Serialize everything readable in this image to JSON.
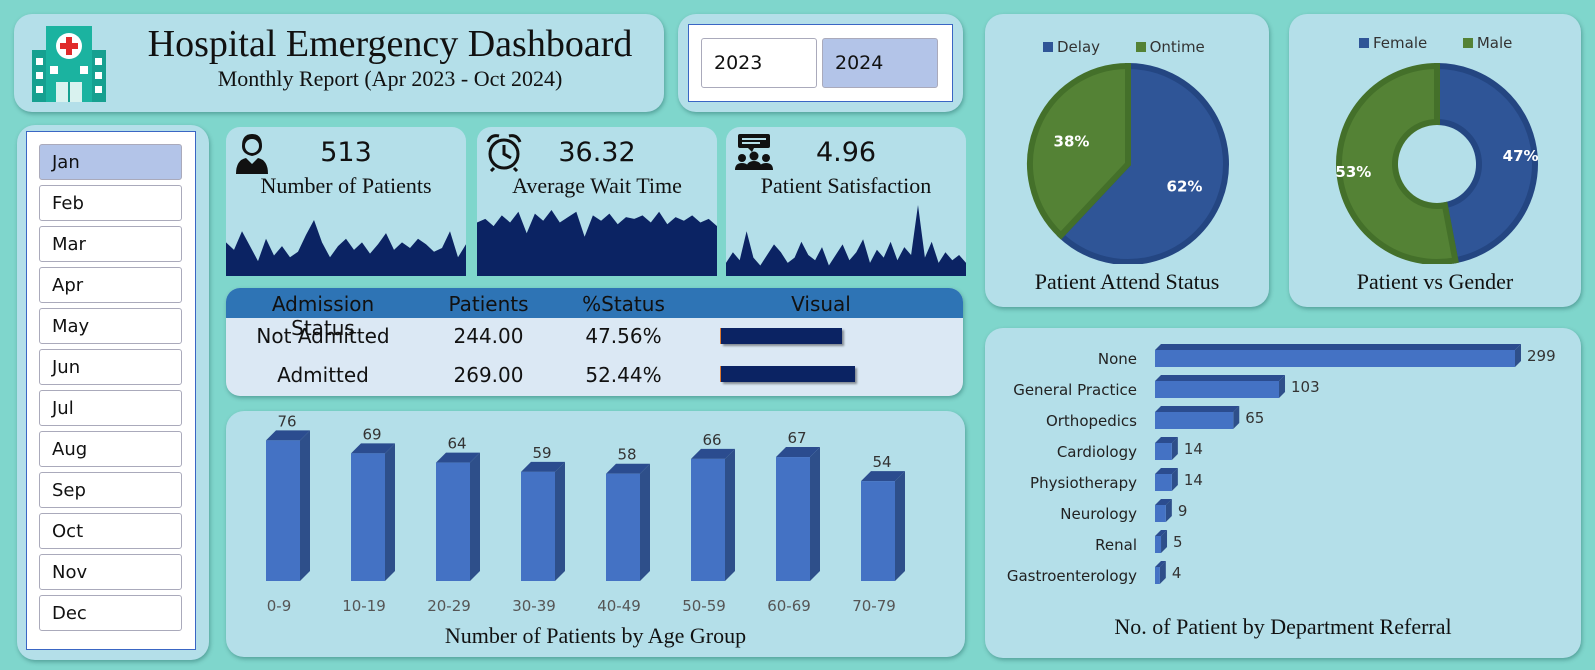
{
  "header": {
    "title": "Hospital Emergency Dashboard",
    "subtitle": "Monthly Report (Apr 2023 - Oct 2024)",
    "icon": "hospital-icon"
  },
  "years": {
    "options": [
      "2023",
      "2024"
    ],
    "selected": "2024"
  },
  "months": {
    "options": [
      "Jan",
      "Feb",
      "Mar",
      "Apr",
      "May",
      "Jun",
      "Jul",
      "Aug",
      "Sep",
      "Oct",
      "Nov",
      "Dec"
    ],
    "selected": "Jan"
  },
  "kpis": {
    "patients": {
      "value": "513",
      "label": "Number of Patients",
      "icon": "patient-icon"
    },
    "wait": {
      "value": "36.32",
      "label": "Average Wait Time",
      "icon": "alarm-clock-icon"
    },
    "satisfaction": {
      "value": "4.96",
      "label": "Patient Satisfaction",
      "icon": "group-feedback-icon"
    }
  },
  "admission": {
    "headers": [
      "Admission Status",
      "Patients",
      "%Status",
      "Visual"
    ],
    "rows": [
      {
        "status": "Not Admitted",
        "patients": "244.00",
        "pct": "47.56%",
        "pct_value": 47.56
      },
      {
        "status": "Admitted",
        "patients": "269.00",
        "pct": "52.44%",
        "pct_value": 52.44
      }
    ]
  },
  "colors": {
    "navy": "#0b2363",
    "blue": "#4472c4",
    "pie_blue": "#2f5597",
    "pie_green": "#548235",
    "panel": "#b4dfe9",
    "background": "#7fd6cc"
  },
  "chart_data": [
    {
      "type": "line",
      "name": "patients-sparkline",
      "values": [
        18,
        14,
        24,
        16,
        8,
        20,
        11,
        16,
        10,
        13,
        22,
        30,
        18,
        10,
        16,
        20,
        14,
        18,
        12,
        17,
        23,
        14,
        18,
        15,
        20,
        17,
        13,
        15,
        24,
        10,
        17
      ]
    },
    {
      "type": "line",
      "name": "wait-sparkline",
      "values": [
        30,
        32,
        28,
        34,
        30,
        36,
        24,
        35,
        31,
        37,
        30,
        33,
        36,
        22,
        34,
        31,
        35,
        29,
        33,
        32,
        34,
        30,
        36,
        29,
        33,
        31,
        34,
        30,
        32,
        28
      ]
    },
    {
      "type": "line",
      "name": "satisfaction-sparkline",
      "values": [
        10,
        18,
        12,
        34,
        14,
        8,
        16,
        24,
        18,
        10,
        14,
        26,
        16,
        12,
        22,
        8,
        16,
        24,
        12,
        18,
        28,
        10,
        20,
        14,
        26,
        12,
        22,
        16,
        54,
        14,
        26,
        10,
        18,
        12,
        16,
        10
      ]
    },
    {
      "type": "bar",
      "title": "Number of Patients by Age Group",
      "categories": [
        "0-9",
        "10-19",
        "20-29",
        "30-39",
        "40-49",
        "50-59",
        "60-69",
        "70-79"
      ],
      "values": [
        76,
        69,
        64,
        59,
        58,
        66,
        67,
        54
      ],
      "ylim": [
        0,
        90
      ]
    },
    {
      "type": "pie",
      "title": "Patient Attend Status",
      "legend": [
        "Delay",
        "Ontime"
      ],
      "labels": [
        "62%",
        "38%"
      ],
      "values": [
        62,
        38
      ],
      "legend_position": "top"
    },
    {
      "type": "pie",
      "title": "Patient vs Gender",
      "legend": [
        "Female",
        "Male"
      ],
      "labels": [
        "47%",
        "53%"
      ],
      "values": [
        47,
        53
      ],
      "donut": true,
      "legend_position": "top"
    },
    {
      "type": "bar",
      "orientation": "horizontal",
      "title": "No. of Patient by Department Referral",
      "categories": [
        "None",
        "General Practice",
        "Orthopedics",
        "Cardiology",
        "Physiotherapy",
        "Neurology",
        "Renal",
        "Gastroenterology"
      ],
      "values": [
        299,
        103,
        65,
        14,
        14,
        9,
        5,
        4
      ]
    }
  ]
}
